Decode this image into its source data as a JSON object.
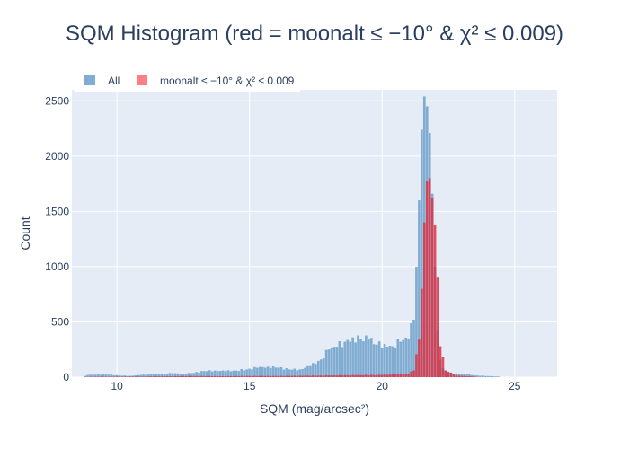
{
  "chart_data": {
    "type": "bar",
    "title": "SQM Histogram (red = moonalt ≤ −10° & χ² ≤ 0.009)",
    "xlabel": "SQM (mag/arcsec²)",
    "ylabel": "Count",
    "xlim": [
      8.3,
      26.6
    ],
    "ylim": [
      0,
      2600
    ],
    "x_ticks": [
      10,
      15,
      20,
      25
    ],
    "y_ticks": [
      0,
      500,
      1000,
      1500,
      2000,
      2500
    ],
    "bin_width": 0.1,
    "barmode": "overlay",
    "grid": true,
    "legend_position": "top-left",
    "plot_bg": "#e5ecf6",
    "series": [
      {
        "name": "All",
        "color": "#7aa9d0",
        "x": [
          8.9,
          9.3,
          9.7,
          10.1,
          10.5,
          10.9,
          11.3,
          11.7,
          12.1,
          12.5,
          12.9,
          13.3,
          13.7,
          14.1,
          14.5,
          14.9,
          15.3,
          15.7,
          16.1,
          16.5,
          16.9,
          17.3,
          17.7,
          18.0,
          18.3,
          18.6,
          18.9,
          19.2,
          19.5,
          19.8,
          20.1,
          20.4,
          20.7,
          21.0,
          21.2,
          21.3,
          21.4,
          21.5,
          21.6,
          21.7,
          21.8,
          21.9,
          22.0,
          22.1,
          22.2,
          22.3,
          22.4,
          22.5,
          22.6,
          22.8,
          23.2,
          23.6,
          24.0,
          24.4
        ],
        "values": [
          20,
          25,
          22,
          15,
          12,
          20,
          25,
          30,
          35,
          32,
          38,
          55,
          60,
          55,
          60,
          70,
          85,
          95,
          85,
          70,
          70,
          100,
          160,
          250,
          275,
          320,
          360,
          345,
          340,
          295,
          300,
          280,
          320,
          350,
          520,
          1000,
          1600,
          2240,
          2540,
          2450,
          2210,
          1660,
          1000,
          420,
          160,
          80,
          60,
          50,
          40,
          35,
          25,
          15,
          10,
          5
        ]
      },
      {
        "name": "moonalt ≤ −10° & χ² ≤ 0.009",
        "color": "#d93447",
        "x": [
          9.0,
          10.0,
          11.0,
          12.0,
          13.0,
          14.0,
          15.0,
          16.0,
          17.0,
          18.0,
          19.0,
          20.0,
          20.5,
          21.0,
          21.2,
          21.4,
          21.5,
          21.6,
          21.7,
          21.8,
          21.9,
          22.0,
          22.1,
          22.2,
          22.4,
          22.8,
          23.5
        ],
        "values": [
          3,
          4,
          5,
          8,
          10,
          8,
          10,
          10,
          12,
          15,
          18,
          20,
          25,
          30,
          60,
          340,
          800,
          1400,
          1770,
          1800,
          1620,
          1380,
          900,
          280,
          60,
          15,
          5
        ]
      }
    ]
  }
}
